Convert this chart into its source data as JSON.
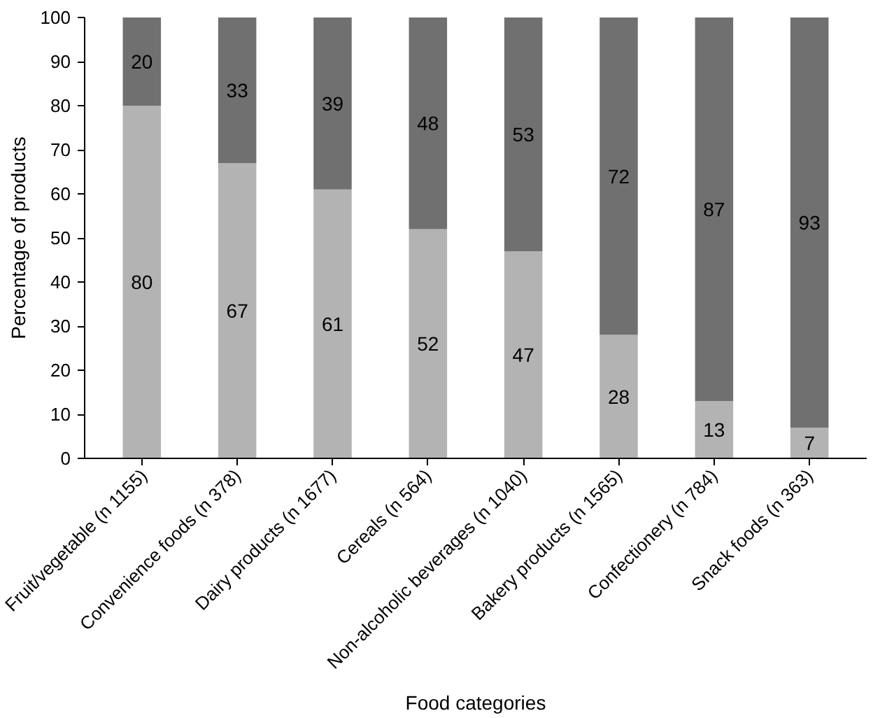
{
  "chart_data": {
    "type": "bar",
    "stacked": true,
    "xlabel": "Food categories",
    "ylabel": "Percentage of products",
    "categories": [
      "Fruit/vegetable (n 1155)",
      "Convenience foods (n 378)",
      "Dairy products (n 1677)",
      "Cereals (n 564)",
      "Non-alcoholic beverages (n 1040)",
      "Bakery products (n 1565)",
      "Confectionery (n 784)",
      "Snack foods (n 363)"
    ],
    "series": [
      {
        "color": "#b3b3b3",
        "values": [
          80,
          67,
          61,
          52,
          47,
          28,
          13,
          7
        ]
      },
      {
        "color": "#707070",
        "values": [
          20,
          33,
          39,
          48,
          53,
          72,
          87,
          93
        ]
      }
    ],
    "ylim": [
      0,
      100
    ],
    "yticks": [
      0,
      10,
      20,
      30,
      40,
      50,
      60,
      70,
      80,
      90,
      100
    ],
    "grid": false,
    "data_labels": true
  }
}
